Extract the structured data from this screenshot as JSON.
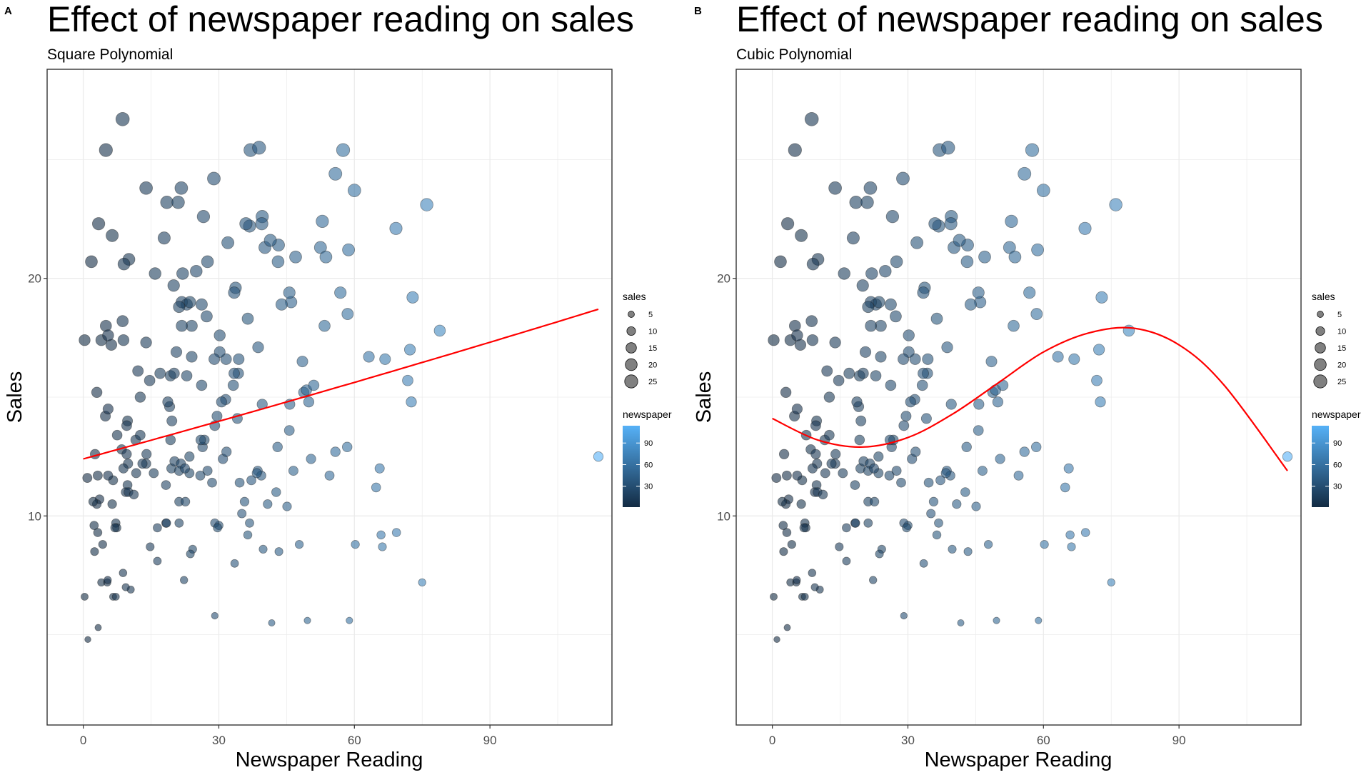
{
  "chart_data": [
    {
      "panel_tag": "A",
      "type": "scatter",
      "title": "Effect of newspaper reading on sales",
      "subtitle": "Square Polynomial",
      "xlabel": "Newspaper Reading",
      "ylabel": "Sales",
      "xlim": [
        -8,
        117
      ],
      "ylim": [
        1.2,
        28.8
      ],
      "xticks": [
        0,
        30,
        60,
        90
      ],
      "yticks": [
        10,
        20
      ],
      "size_legend": {
        "title": "sales",
        "values": [
          5,
          10,
          15,
          20,
          25
        ]
      },
      "color_legend": {
        "title": "newspaper",
        "values": [
          30,
          60,
          90
        ],
        "low_color": "#132B43",
        "high_color": "#56B1F7"
      },
      "fit": {
        "kind": "quadratic",
        "x": [
          0,
          114
        ],
        "y": [
          12.4,
          18.7
        ],
        "color": "#ff0000"
      }
    },
    {
      "panel_tag": "B",
      "type": "scatter",
      "title": "Effect of newspaper reading on sales",
      "subtitle": "Cubic Polynomial",
      "xlabel": "Newspaper Reading",
      "ylabel": "Sales",
      "xlim": [
        -8,
        117
      ],
      "ylim": [
        1.2,
        28.8
      ],
      "xticks": [
        0,
        30,
        60,
        90
      ],
      "yticks": [
        10,
        20
      ],
      "size_legend": {
        "title": "sales",
        "values": [
          5,
          10,
          15,
          20,
          25
        ]
      },
      "color_legend": {
        "title": "newspaper",
        "values": [
          30,
          60,
          90
        ],
        "low_color": "#132B43",
        "high_color": "#56B1F7"
      },
      "fit": {
        "kind": "cubic",
        "x": [
          0,
          10,
          20,
          30,
          40,
          50,
          60,
          70,
          80,
          90,
          100,
          114
        ],
        "y": [
          14.1,
          13.2,
          12.9,
          13.3,
          14.3,
          15.6,
          16.9,
          17.7,
          17.9,
          17.2,
          15.5,
          11.9
        ],
        "color": "#ff0000"
      }
    }
  ],
  "points": [
    [
      69.2,
      22.1
    ],
    [
      45.1,
      10.4
    ],
    [
      69.3,
      9.3
    ],
    [
      58.5,
      18.5
    ],
    [
      58.4,
      12.9
    ],
    [
      75.0,
      7.2
    ],
    [
      23.5,
      11.8
    ],
    [
      11.6,
      13.2
    ],
    [
      1.0,
      4.8
    ],
    [
      21.2,
      10.6
    ],
    [
      24.2,
      8.6
    ],
    [
      4.0,
      17.4
    ],
    [
      65.9,
      9.2
    ],
    [
      7.2,
      9.7
    ],
    [
      46.0,
      19.0
    ],
    [
      52.9,
      22.4
    ],
    [
      114.0,
      12.5
    ],
    [
      55.8,
      24.4
    ],
    [
      18.3,
      11.3
    ],
    [
      19.1,
      14.6
    ],
    [
      53.4,
      18.0
    ],
    [
      23.5,
      12.5
    ],
    [
      49.6,
      5.6
    ],
    [
      26.2,
      15.5
    ],
    [
      18.3,
      9.7
    ],
    [
      19.5,
      12.0
    ],
    [
      12.6,
      15.0
    ],
    [
      22.9,
      15.9
    ],
    [
      22.9,
      18.9
    ],
    [
      40.8,
      10.5
    ],
    [
      43.2,
      21.4
    ],
    [
      38.6,
      11.9
    ],
    [
      30.0,
      9.6
    ],
    [
      0.3,
      17.4
    ],
    [
      7.4,
      9.5
    ],
    [
      8.5,
      12.8
    ],
    [
      5.0,
      25.4
    ],
    [
      45.7,
      14.7
    ],
    [
      35.1,
      10.1
    ],
    [
      32.0,
      21.5
    ],
    [
      31.6,
      16.6
    ],
    [
      38.7,
      17.1
    ],
    [
      1.8,
      20.7
    ],
    [
      26.4,
      12.9
    ],
    [
      43.3,
      8.5
    ],
    [
      31.5,
      14.9
    ],
    [
      35.7,
      10.6
    ],
    [
      18.5,
      23.2
    ],
    [
      49.9,
      14.8
    ],
    [
      36.8,
      9.7
    ],
    [
      34.6,
      11.4
    ],
    [
      3.6,
      10.7
    ],
    [
      39.6,
      22.6
    ],
    [
      58.7,
      21.2
    ],
    [
      15.9,
      20.2
    ],
    [
      60.0,
      23.7
    ],
    [
      41.7,
      5.5
    ],
    [
      26.8,
      13.2
    ],
    [
      21.7,
      23.8
    ],
    [
      27.3,
      18.4
    ],
    [
      16.4,
      8.1
    ],
    [
      28.9,
      24.2
    ],
    [
      71.8,
      15.7
    ],
    [
      19.6,
      14.0
    ],
    [
      24.0,
      18.0
    ],
    [
      3.2,
      9.3
    ],
    [
      16.4,
      9.5
    ],
    [
      12.6,
      13.4
    ],
    [
      26.2,
      18.9
    ],
    [
      39.5,
      22.3
    ],
    [
      36.4,
      18.3
    ],
    [
      50.4,
      12.4
    ],
    [
      47.8,
      8.8
    ],
    [
      9.4,
      11.0
    ],
    [
      72.3,
      17.0
    ],
    [
      66.2,
      8.7
    ],
    [
      10.5,
      6.9
    ],
    [
      4.9,
      14.2
    ],
    [
      3.3,
      5.3
    ],
    [
      42.7,
      11.0
    ],
    [
      15.6,
      11.8
    ],
    [
      20.2,
      12.3
    ],
    [
      9.8,
      11.3
    ],
    [
      45.6,
      13.6
    ],
    [
      17.9,
      21.7
    ],
    [
      48.8,
      15.2
    ],
    [
      65.6,
      12.0
    ],
    [
      17.0,
      16.0
    ],
    [
      43.0,
      12.9
    ],
    [
      24.0,
      16.7
    ],
    [
      64.8,
      11.2
    ],
    [
      22.3,
      7.3
    ],
    [
      56.9,
      19.4
    ],
    [
      36.8,
      22.2
    ],
    [
      6.6,
      11.5
    ],
    [
      30.2,
      16.9
    ],
    [
      39.4,
      11.7
    ],
    [
      33.2,
      15.5
    ],
    [
      37.0,
      25.4
    ],
    [
      6.2,
      17.2
    ],
    [
      54.5,
      11.7
    ],
    [
      13.9,
      23.8
    ],
    [
      72.6,
      14.8
    ],
    [
      39.6,
      14.7
    ],
    [
      27.5,
      20.7
    ],
    [
      72.9,
      19.2
    ],
    [
      4.0,
      7.2
    ],
    [
      14.8,
      8.7
    ],
    [
      29.1,
      9.7
    ],
    [
      3.4,
      22.3
    ],
    [
      57.5,
      25.4
    ],
    [
      5.3,
      7.2
    ],
    [
      8.8,
      7.6
    ],
    [
      40.2,
      21.3
    ],
    [
      6.4,
      21.8
    ],
    [
      9.8,
      14.0
    ],
    [
      22.0,
      20.2
    ],
    [
      10.0,
      11.0
    ],
    [
      46.5,
      11.9
    ],
    [
      20.0,
      19.7
    ],
    [
      6.6,
      6.6
    ],
    [
      9.4,
      7.0
    ],
    [
      0.3,
      6.6
    ],
    [
      3.0,
      15.2
    ],
    [
      7.0,
      9.5
    ],
    [
      18.4,
      9.7
    ],
    [
      45.6,
      19.4
    ],
    [
      4.3,
      8.8
    ],
    [
      29.1,
      5.8
    ],
    [
      29.7,
      9.5
    ],
    [
      2.4,
      9.6
    ],
    [
      13.9,
      17.3
    ],
    [
      0.9,
      11.6
    ],
    [
      26.6,
      22.6
    ],
    [
      21.2,
      9.7
    ],
    [
      10.1,
      20.8
    ],
    [
      33.5,
      8.0
    ],
    [
      3.2,
      11.7
    ],
    [
      19.3,
      13.2
    ],
    [
      30.9,
      12.4
    ],
    [
      36.4,
      9.2
    ],
    [
      8.9,
      17.4
    ],
    [
      26.0,
      13.2
    ],
    [
      5.0,
      18.0
    ],
    [
      21.8,
      19.0
    ],
    [
      21.0,
      23.2
    ],
    [
      9.9,
      12.2
    ],
    [
      9.6,
      13.8
    ],
    [
      23.6,
      19.0
    ],
    [
      3.0,
      10.5
    ],
    [
      38.4,
      11.8
    ],
    [
      28.5,
      11.4
    ],
    [
      13.9,
      12.2
    ],
    [
      18.7,
      14.8
    ],
    [
      11.2,
      10.9
    ],
    [
      34.3,
      16.0
    ],
    [
      34.4,
      16.6
    ],
    [
      27.5,
      11.9
    ],
    [
      48.5,
      16.5
    ],
    [
      33.4,
      16.0
    ],
    [
      13.1,
      12.2
    ],
    [
      14.0,
      12.6
    ],
    [
      25.9,
      11.7
    ],
    [
      2.2,
      10.6
    ],
    [
      21.6,
      12.2
    ],
    [
      49.4,
      15.3
    ],
    [
      7.2,
      6.6
    ],
    [
      58.9,
      5.6
    ],
    [
      7.5,
      13.4
    ],
    [
      20.6,
      16.9
    ],
    [
      51.0,
      15.5
    ],
    [
      5.5,
      11.7
    ],
    [
      2.5,
      8.5
    ],
    [
      39.8,
      8.6
    ],
    [
      21.2,
      11.9
    ],
    [
      43.1,
      20.7
    ],
    [
      34.1,
      14.1
    ],
    [
      5.5,
      17.6
    ],
    [
      55.8,
      12.7
    ],
    [
      8.7,
      26.7
    ],
    [
      37.2,
      11.5
    ],
    [
      19.3,
      15.9
    ],
    [
      5.4,
      7.3
    ],
    [
      29.0,
      16.6
    ],
    [
      14.7,
      15.7
    ],
    [
      22.5,
      12.0
    ],
    [
      63.2,
      16.7
    ],
    [
      30.6,
      14.8
    ],
    [
      41.4,
      21.6
    ],
    [
      38.9,
      25.5
    ],
    [
      11.7,
      11.8
    ],
    [
      21.2,
      18.8
    ],
    [
      60.2,
      8.8
    ],
    [
      5.5,
      14.5
    ],
    [
      29.6,
      14.2
    ],
    [
      43.9,
      18.9
    ],
    [
      6.4,
      10.5
    ],
    [
      9.6,
      12.6
    ],
    [
      8.7,
      18.2
    ],
    [
      66.8,
      16.6
    ],
    [
      21.8,
      18.0
    ],
    [
      9.0,
      20.6
    ],
    [
      25.0,
      20.3
    ],
    [
      52.5,
      21.3
    ],
    [
      76.0,
      23.1
    ],
    [
      33.7,
      19.6
    ],
    [
      23.7,
      8.4
    ],
    [
      20.1,
      16.0
    ],
    [
      8.9,
      12.0
    ],
    [
      12.1,
      16.1
    ],
    [
      36.0,
      22.3
    ],
    [
      53.7,
      20.9
    ],
    [
      33.4,
      19.4
    ],
    [
      2.6,
      12.6
    ],
    [
      22.6,
      10.6
    ],
    [
      78.9,
      17.8
    ],
    [
      47.0,
      20.9
    ],
    [
      30.2,
      17.6
    ],
    [
      31.7,
      12.7
    ],
    [
      29.1,
      13.8
    ]
  ]
}
